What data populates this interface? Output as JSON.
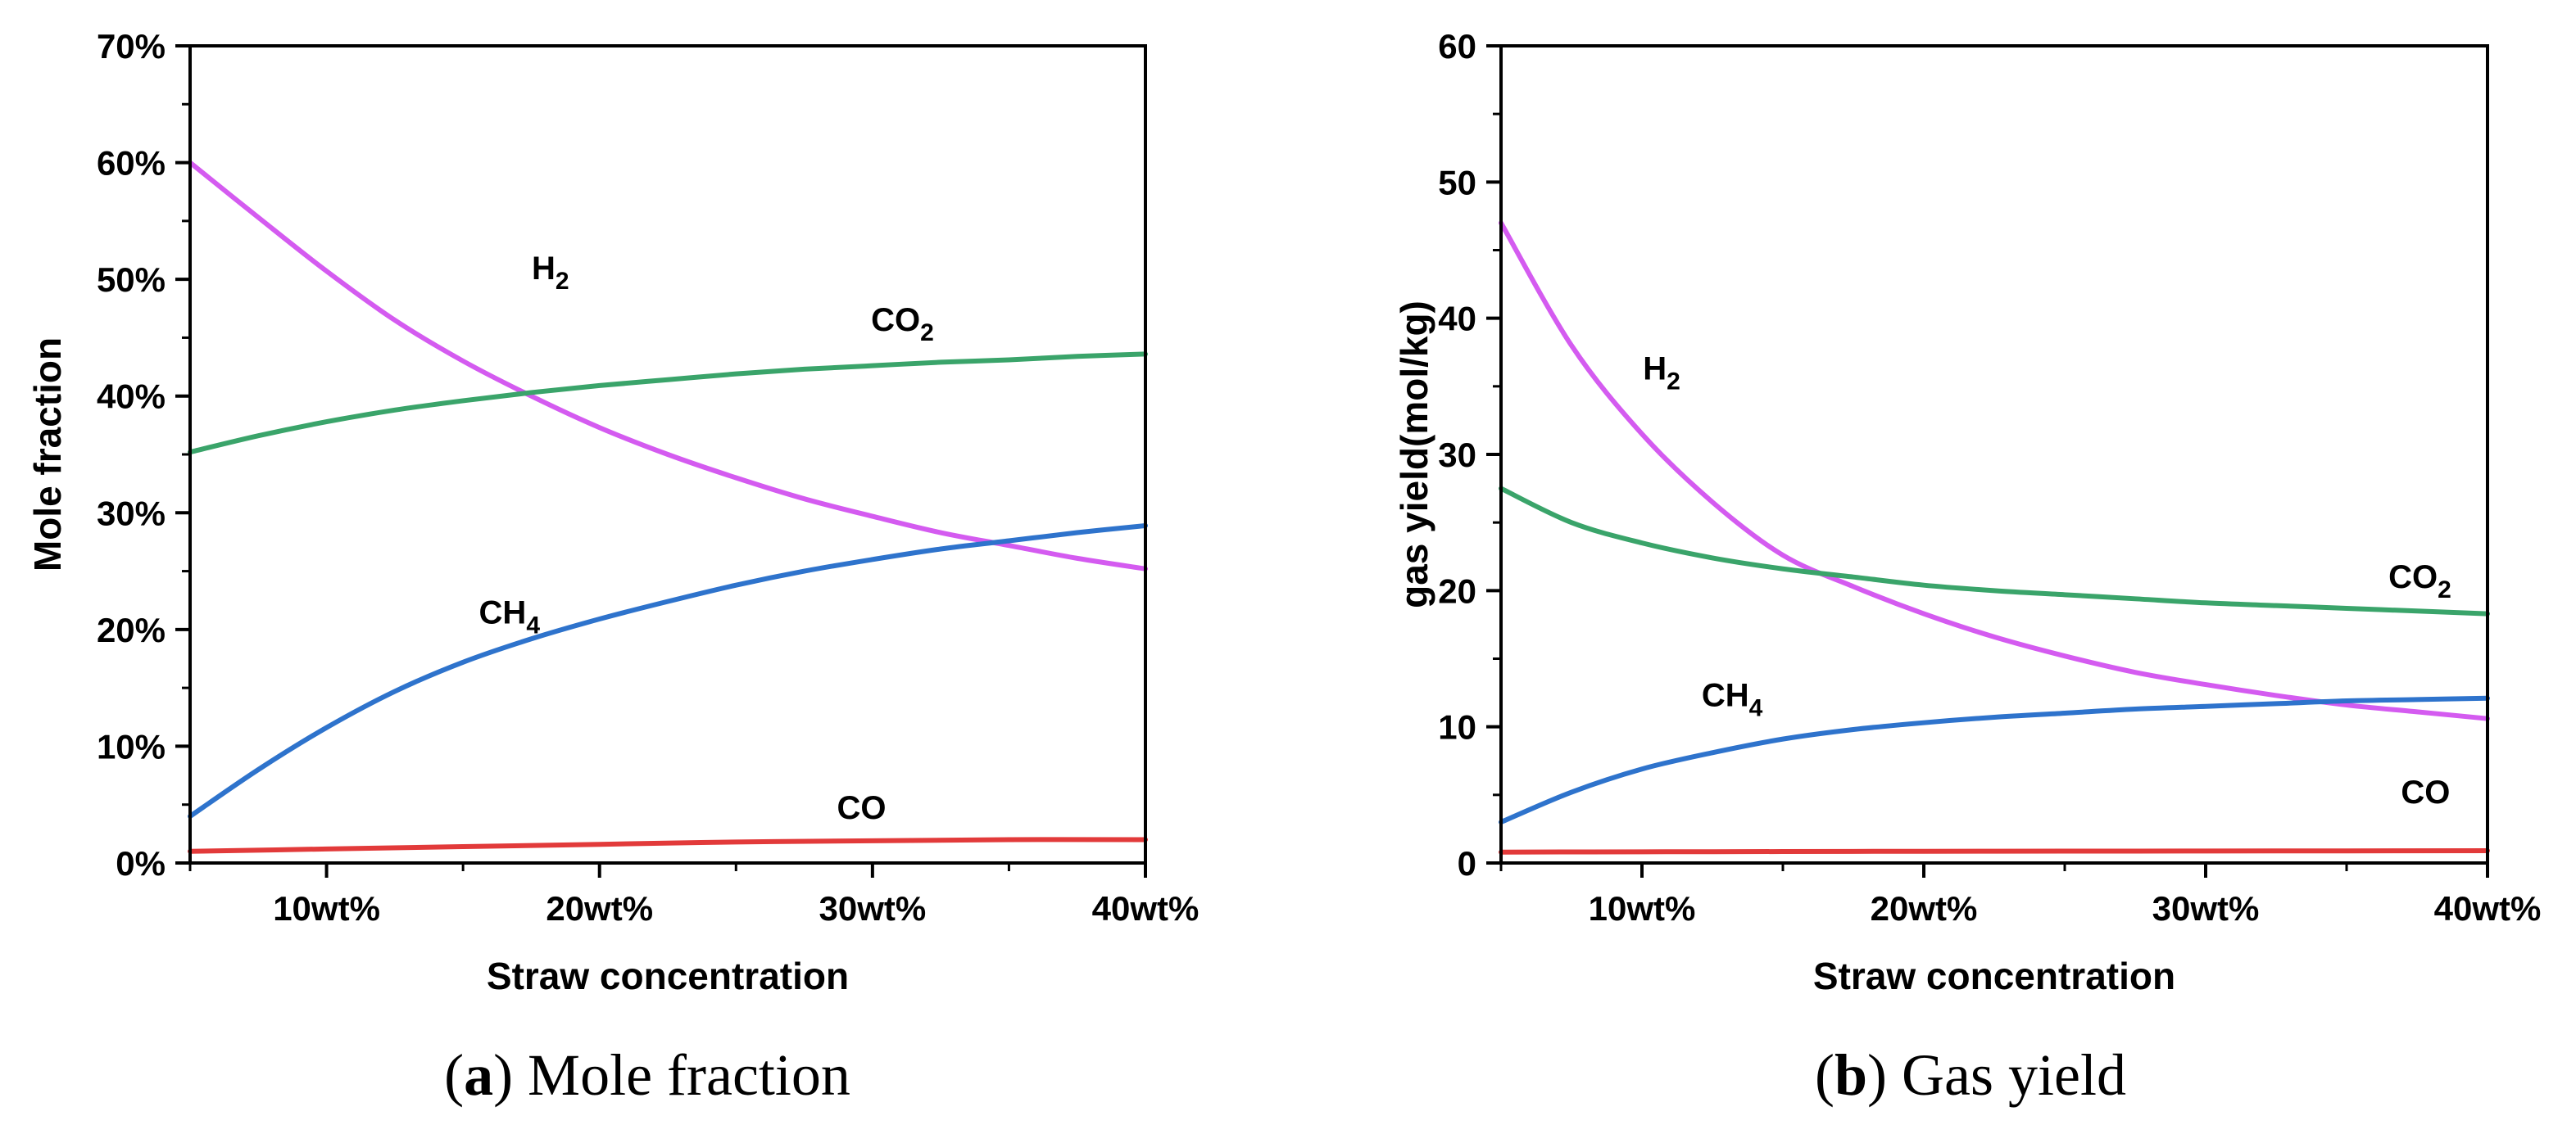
{
  "chart_data": [
    {
      "type": "line",
      "id": "a",
      "caption_letter": "a",
      "caption_text": "Mole fraction",
      "xlabel": "Straw concentration",
      "ylabel": "Mole fraction",
      "xlim": [
        5,
        40
      ],
      "ylim": [
        0,
        70
      ],
      "x_ticks": [
        10,
        20,
        30,
        40
      ],
      "x_tick_labels": [
        "10wt%",
        "20wt%",
        "30wt%",
        "40wt%"
      ],
      "y_ticks": [
        0,
        10,
        20,
        30,
        40,
        50,
        60,
        70
      ],
      "y_tick_labels": [
        "0%",
        "10%",
        "20%",
        "30%",
        "40%",
        "50%",
        "60%",
        "70%"
      ],
      "series": [
        {
          "name": "H2",
          "label_main": "H",
          "label_sub": "2",
          "color": "#d45bf0",
          "x": [
            5,
            7.5,
            10,
            12.5,
            15,
            17.5,
            20,
            22.5,
            25,
            27.5,
            30,
            32.5,
            35,
            37.5,
            40
          ],
          "y": [
            60,
            55.3,
            50.7,
            46.5,
            43,
            40,
            37.3,
            35,
            33,
            31.2,
            29.7,
            28.3,
            27.2,
            26.1,
            25.2
          ],
          "label_at": [
            18.2,
            50
          ]
        },
        {
          "name": "CO2",
          "label_main": "CO",
          "label_sub": "2",
          "color": "#3aa46a",
          "x": [
            5,
            7.5,
            10,
            12.5,
            15,
            17.5,
            20,
            22.5,
            25,
            27.5,
            30,
            32.5,
            35,
            37.5,
            40
          ],
          "y": [
            35.2,
            36.6,
            37.8,
            38.8,
            39.6,
            40.3,
            40.9,
            41.4,
            41.9,
            42.3,
            42.6,
            42.9,
            43.1,
            43.4,
            43.6
          ],
          "label_at": [
            31.1,
            45.6
          ]
        },
        {
          "name": "CH4",
          "label_main": "CH",
          "label_sub": "4",
          "color": "#2e73cc",
          "x": [
            5,
            7.5,
            10,
            12.5,
            15,
            17.5,
            20,
            22.5,
            25,
            27.5,
            30,
            32.5,
            35,
            37.5,
            40
          ],
          "y": [
            4,
            8,
            11.6,
            14.7,
            17.2,
            19.2,
            20.9,
            22.4,
            23.8,
            25,
            26,
            26.9,
            27.6,
            28.3,
            28.9
          ],
          "label_at": [
            16.7,
            20.5
          ]
        },
        {
          "name": "CO",
          "label_main": "CO",
          "label_sub": "",
          "color": "#e23a3a",
          "x": [
            5,
            10,
            15,
            20,
            25,
            30,
            35,
            40
          ],
          "y": [
            1.0,
            1.2,
            1.4,
            1.6,
            1.8,
            1.9,
            2.0,
            2.0
          ],
          "label_at": [
            29.6,
            3.8
          ]
        }
      ]
    },
    {
      "type": "line",
      "id": "b",
      "caption_letter": "b",
      "caption_text": "Gas yield",
      "xlabel": "Straw concentration",
      "ylabel": "gas yield(mol/kg)",
      "xlim": [
        5,
        40
      ],
      "ylim": [
        0,
        60
      ],
      "x_ticks": [
        10,
        20,
        30,
        40
      ],
      "x_tick_labels": [
        "10wt%",
        "20wt%",
        "30wt%",
        "40wt%"
      ],
      "y_ticks": [
        0,
        10,
        20,
        30,
        40,
        50,
        60
      ],
      "y_tick_labels": [
        "0",
        "10",
        "20",
        "30",
        "40",
        "50",
        "60"
      ],
      "series": [
        {
          "name": "H2",
          "label_main": "H",
          "label_sub": "2",
          "color": "#d45bf0",
          "x": [
            5,
            7.5,
            10,
            12.5,
            15,
            17.5,
            20,
            22.5,
            25,
            27.5,
            30,
            32.5,
            35,
            37.5,
            40
          ],
          "y": [
            47,
            38,
            31.5,
            26.5,
            22.6,
            20.3,
            18.3,
            16.6,
            15.2,
            14,
            13.1,
            12.3,
            11.6,
            11.1,
            10.6
          ],
          "label_at": [
            10.7,
            35.5
          ]
        },
        {
          "name": "CO2",
          "label_main": "CO",
          "label_sub": "2",
          "color": "#3aa46a",
          "x": [
            5,
            7.5,
            10,
            12.5,
            15,
            17.5,
            20,
            22.5,
            25,
            27.5,
            30,
            32.5,
            35,
            37.5,
            40
          ],
          "y": [
            27.5,
            25,
            23.5,
            22.4,
            21.6,
            21,
            20.4,
            20,
            19.7,
            19.4,
            19.1,
            18.9,
            18.7,
            18.5,
            18.3
          ],
          "label_at": [
            37.6,
            20.2
          ]
        },
        {
          "name": "CH4",
          "label_main": "CH",
          "label_sub": "4",
          "color": "#2e73cc",
          "x": [
            5,
            7.5,
            10,
            12.5,
            15,
            17.5,
            20,
            22.5,
            25,
            27.5,
            30,
            32.5,
            35,
            37.5,
            40
          ],
          "y": [
            3,
            5.2,
            6.9,
            8.1,
            9.1,
            9.8,
            10.3,
            10.7,
            11,
            11.3,
            11.5,
            11.7,
            11.9,
            12,
            12.1
          ],
          "label_at": [
            13.2,
            11.5
          ]
        },
        {
          "name": "CO",
          "label_main": "CO",
          "label_sub": "",
          "color": "#e23a3a",
          "x": [
            5,
            10,
            15,
            20,
            25,
            30,
            35,
            40
          ],
          "y": [
            0.8,
            0.82,
            0.84,
            0.86,
            0.87,
            0.88,
            0.89,
            0.9
          ],
          "label_at": [
            37.8,
            4.4
          ]
        }
      ]
    }
  ]
}
